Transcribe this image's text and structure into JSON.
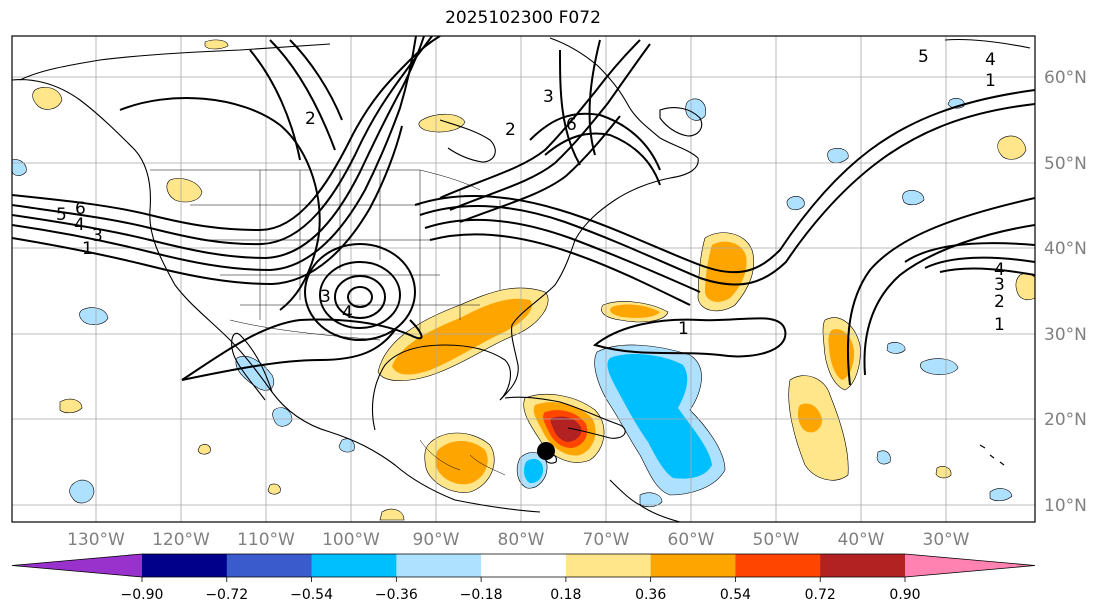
{
  "title": "2025102300 F072",
  "longitude_labels": [
    "130°W",
    "120°W",
    "110°W",
    "100°W",
    "90°W",
    "80°W",
    "70°W",
    "60°W",
    "50°W",
    "40°W",
    "30°W"
  ],
  "latitude_labels": [
    "60°N",
    "50°N",
    "40°N",
    "30°N",
    "20°N",
    "10°N"
  ],
  "colorbar": {
    "tick_labels": [
      "−0.90",
      "−0.72",
      "−0.54",
      "−0.36",
      "−0.18",
      "0.18",
      "0.36",
      "0.54",
      "0.72",
      "0.90"
    ],
    "colors": [
      "#9932cc",
      "#00008b",
      "#3a5bcc",
      "#00bfff",
      "#aee0ff",
      "#ffffff",
      "#ffe68a",
      "#ffa500",
      "#ff4500",
      "#b22222",
      "#ff82b0"
    ]
  },
  "contour_labels": [
    "1",
    "2",
    "3",
    "4",
    "5",
    "6"
  ],
  "marker": "black-dot"
}
